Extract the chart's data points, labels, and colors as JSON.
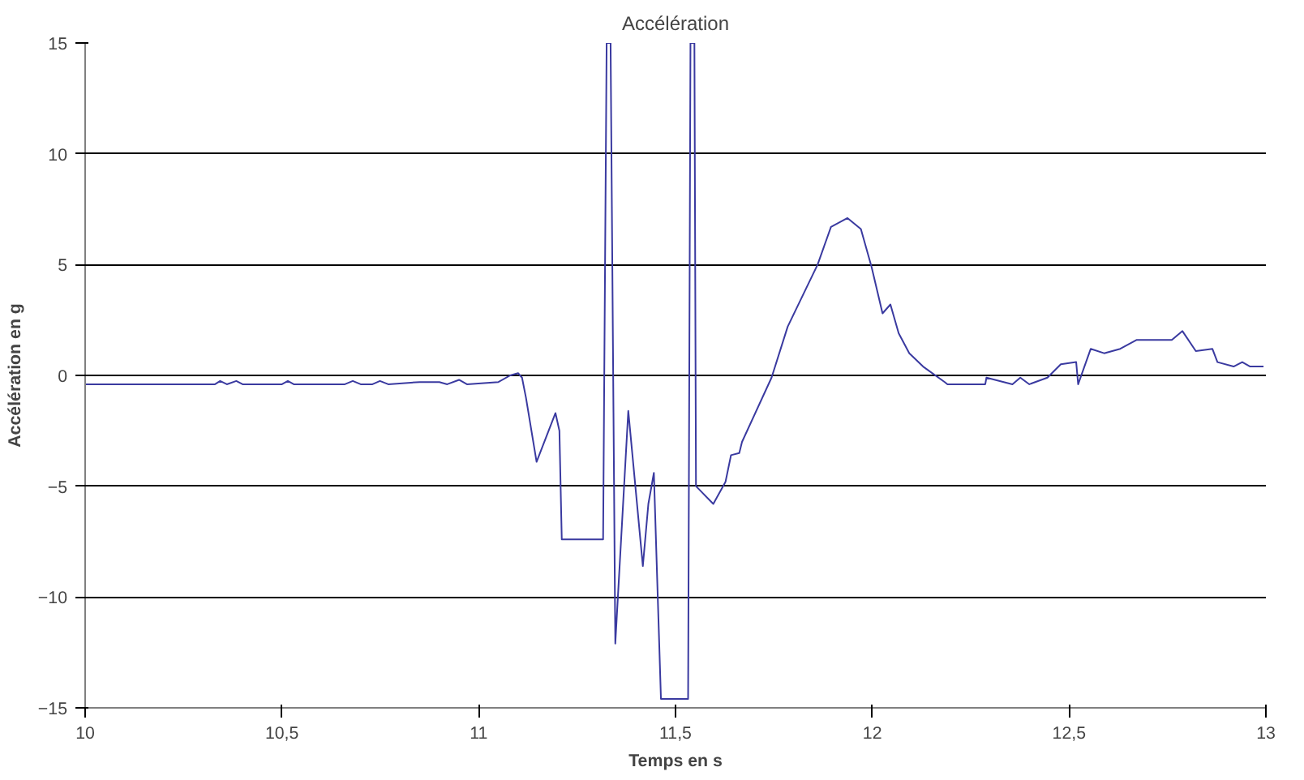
{
  "chart_data": {
    "type": "line",
    "title": "Accélération",
    "xlabel": "Temps en s",
    "ylabel": "Accélération en g",
    "x": [
      10.0,
      10.33,
      10.343,
      10.36,
      10.384,
      10.4,
      10.5,
      10.515,
      10.53,
      10.55,
      10.66,
      10.68,
      10.7,
      10.73,
      10.749,
      10.77,
      10.85,
      10.9,
      10.92,
      10.95,
      10.97,
      11.05,
      11.08,
      11.1,
      11.11,
      11.12,
      11.147,
      11.195,
      11.205,
      11.211,
      11.316,
      11.325,
      11.335,
      11.347,
      11.38,
      11.417,
      11.431,
      11.445,
      11.463,
      11.532,
      11.538,
      11.548,
      11.552,
      11.596,
      11.627,
      11.641,
      11.662,
      11.669,
      11.744,
      11.785,
      11.861,
      11.895,
      11.937,
      11.971,
      11.998,
      12.026,
      12.046,
      12.067,
      12.094,
      12.129,
      12.184,
      12.191,
      12.287,
      12.29,
      12.356,
      12.376,
      12.399,
      12.445,
      12.479,
      12.518,
      12.523,
      12.555,
      12.589,
      12.63,
      12.671,
      12.761,
      12.788,
      12.822,
      12.864,
      12.877,
      12.918,
      12.94,
      12.96,
      12.994
    ],
    "values": [
      -0.4,
      -0.4,
      -0.25,
      -0.4,
      -0.25,
      -0.4,
      -0.4,
      -0.25,
      -0.4,
      -0.4,
      -0.4,
      -0.25,
      -0.4,
      -0.4,
      -0.25,
      -0.4,
      -0.3,
      -0.3,
      -0.4,
      -0.2,
      -0.4,
      -0.3,
      0.0,
      0.1,
      -0.1,
      -1.0,
      -3.9,
      -1.7,
      -2.5,
      -7.4,
      -7.4,
      15,
      15,
      -12.1,
      -1.6,
      -8.6,
      -5.8,
      -4.4,
      -14.6,
      -14.6,
      15,
      15,
      -5.0,
      -5.8,
      -4.8,
      -3.6,
      -3.5,
      -3.0,
      -0.1,
      2.2,
      5.0,
      6.7,
      7.1,
      6.6,
      4.9,
      2.8,
      3.2,
      1.9,
      1.0,
      0.4,
      -0.3,
      -0.4,
      -0.4,
      -0.1,
      -0.4,
      -0.1,
      -0.4,
      -0.1,
      0.5,
      0.6,
      -0.4,
      1.2,
      1.0,
      1.2,
      1.6,
      1.6,
      2.0,
      1.1,
      1.2,
      0.6,
      0.4,
      0.6,
      0.4,
      0.4
    ],
    "color": "#3a3aa0",
    "xlim": [
      10,
      13
    ],
    "ylim": [
      -15,
      15
    ],
    "xticks": [
      10,
      {
        "value": 10.5,
        "label": "10,5"
      },
      11,
      {
        "value": 11.5,
        "label": "11,5"
      },
      12,
      {
        "value": 12.5,
        "label": "12,5"
      },
      13
    ],
    "yticks": [
      -15,
      -10,
      -5,
      0,
      5,
      10,
      15
    ],
    "grid": "y",
    "marker": "none",
    "line_style": "solid"
  }
}
